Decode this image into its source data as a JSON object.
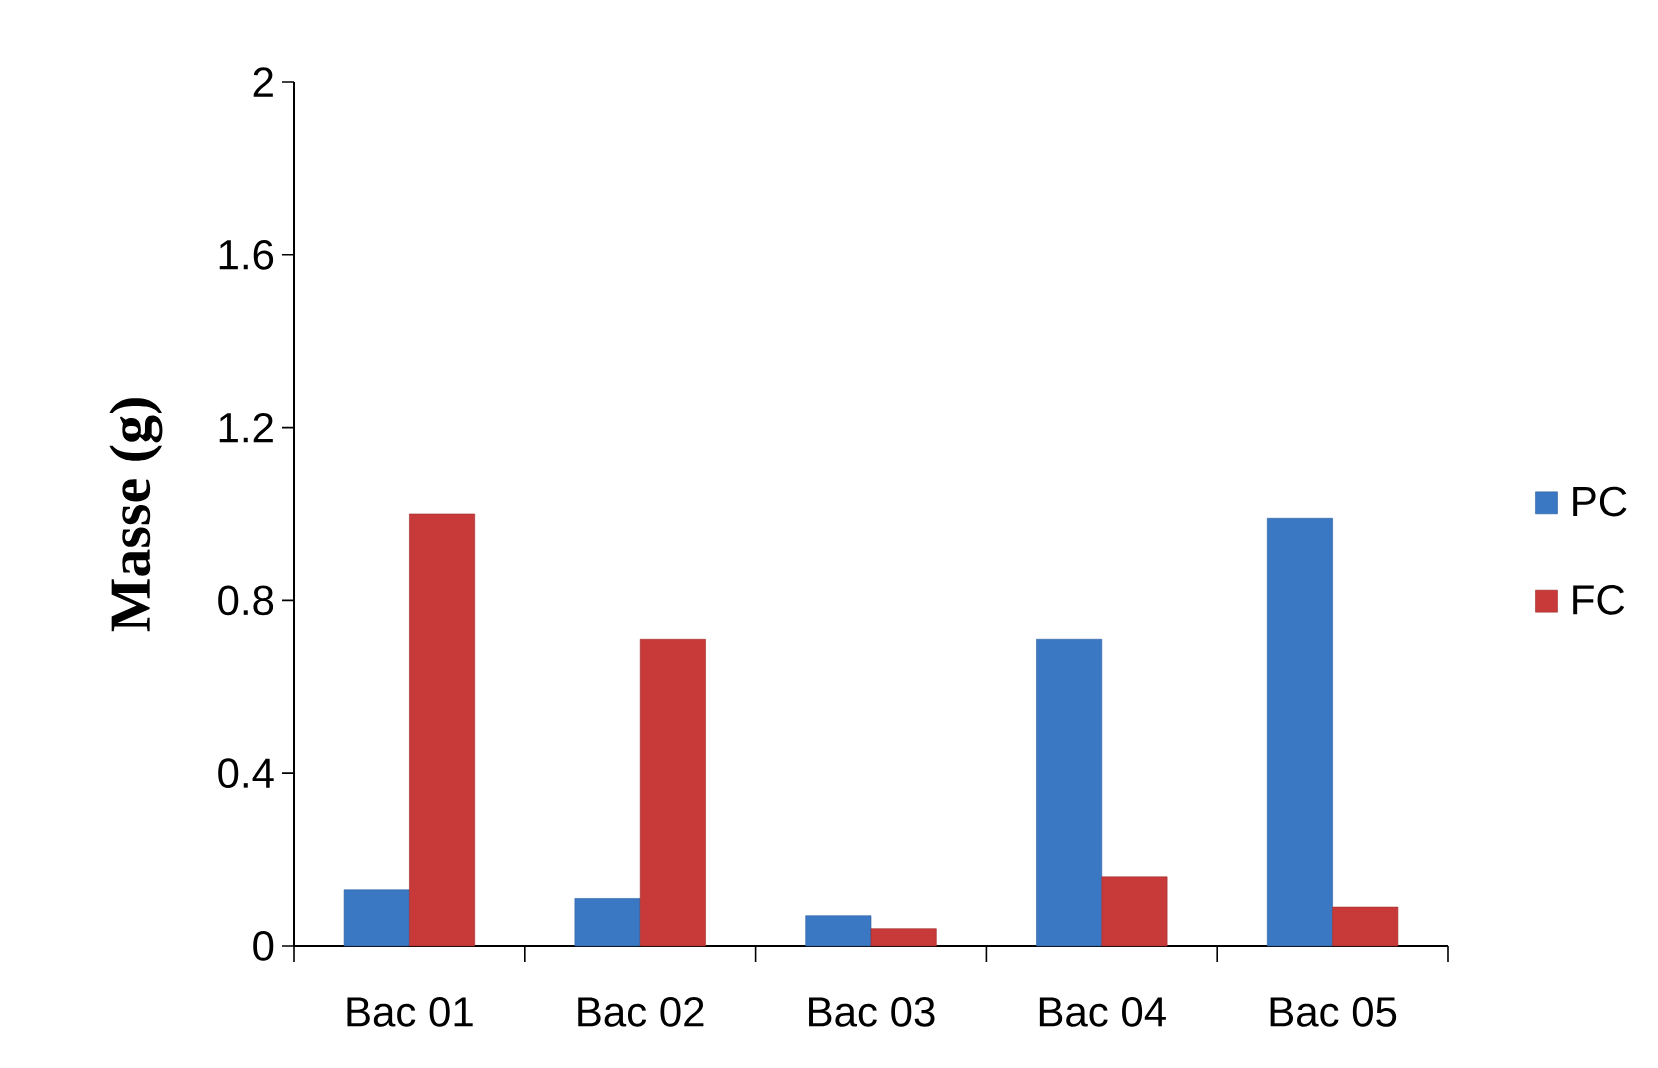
{
  "chart_data": {
    "type": "bar",
    "ylabel": "Masse (g)",
    "categories": [
      "Bac 01",
      "Bac 02",
      "Bac 03",
      "Bac 04",
      "Bac 05"
    ],
    "series": [
      {
        "name": "PC",
        "color": "#3b78c4",
        "values": [
          0.13,
          0.11,
          0.07,
          0.71,
          0.99
        ]
      },
      {
        "name": "FC",
        "color": "#c83a3a",
        "values": [
          1.0,
          0.71,
          0.04,
          0.16,
          0.09
        ]
      }
    ],
    "ylim": [
      0,
      2
    ],
    "yticks": [
      0,
      0.4,
      0.8,
      1.2,
      1.6,
      2
    ],
    "legend": "right"
  }
}
